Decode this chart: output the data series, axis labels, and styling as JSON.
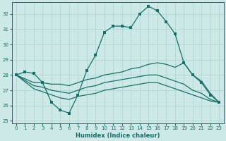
{
  "xlabel": "Humidex (Indice chaleur)",
  "bg_color": "#cce9e7",
  "grid_color": "#aad4d0",
  "line_color": "#1a6e6a",
  "xlim": [
    -0.5,
    23.5
  ],
  "ylim": [
    24.85,
    32.75
  ],
  "yticks": [
    25,
    26,
    27,
    28,
    29,
    30,
    31,
    32
  ],
  "xticks": [
    0,
    1,
    2,
    3,
    4,
    5,
    6,
    7,
    8,
    9,
    10,
    11,
    12,
    13,
    14,
    15,
    16,
    17,
    18,
    19,
    20,
    21,
    22,
    23
  ],
  "lines": [
    {
      "x": [
        0,
        1,
        2,
        3,
        4,
        5,
        6,
        7,
        8,
        9,
        10,
        11,
        12,
        13,
        14,
        15,
        16,
        17,
        18,
        19,
        20,
        21,
        22,
        23
      ],
      "y": [
        28.0,
        28.2,
        28.1,
        27.5,
        26.2,
        25.7,
        25.5,
        26.7,
        28.3,
        29.3,
        30.8,
        31.2,
        31.2,
        31.1,
        32.0,
        32.5,
        32.2,
        31.5,
        30.7,
        28.8,
        28.0,
        27.5,
        26.7,
        26.2
      ],
      "marker": true
    },
    {
      "x": [
        0,
        2,
        3,
        4,
        5,
        6,
        7,
        8,
        9,
        10,
        11,
        12,
        13,
        14,
        15,
        16,
        17,
        18,
        19,
        20,
        21,
        22,
        23
      ],
      "y": [
        28.0,
        27.5,
        27.5,
        27.4,
        27.4,
        27.3,
        27.5,
        27.7,
        27.8,
        28.0,
        28.1,
        28.2,
        28.4,
        28.5,
        28.7,
        28.8,
        28.7,
        28.5,
        28.8,
        28.0,
        27.6,
        26.8,
        26.2
      ],
      "marker": false
    },
    {
      "x": [
        0,
        2,
        3,
        4,
        5,
        6,
        7,
        8,
        9,
        10,
        11,
        12,
        13,
        14,
        15,
        16,
        17,
        18,
        19,
        20,
        21,
        22,
        23
      ],
      "y": [
        28.0,
        27.3,
        27.2,
        27.0,
        26.9,
        26.8,
        27.0,
        27.2,
        27.3,
        27.5,
        27.6,
        27.7,
        27.8,
        27.9,
        28.0,
        28.0,
        27.8,
        27.6,
        27.4,
        27.0,
        26.8,
        26.4,
        26.2
      ],
      "marker": false
    },
    {
      "x": [
        0,
        2,
        3,
        4,
        5,
        6,
        7,
        8,
        9,
        10,
        11,
        12,
        13,
        14,
        15,
        16,
        17,
        18,
        19,
        20,
        21,
        22,
        23
      ],
      "y": [
        28.0,
        27.1,
        26.9,
        26.7,
        26.5,
        26.4,
        26.6,
        26.7,
        26.8,
        27.0,
        27.1,
        27.2,
        27.3,
        27.4,
        27.5,
        27.5,
        27.3,
        27.1,
        26.9,
        26.7,
        26.5,
        26.3,
        26.2
      ],
      "marker": false
    }
  ]
}
